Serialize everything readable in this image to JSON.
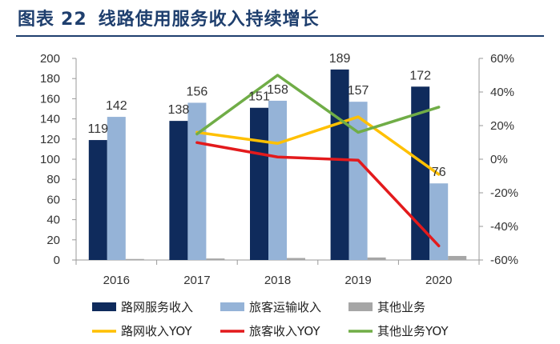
{
  "figure": {
    "label": "图表",
    "number": "22",
    "caption": "线路使用服务收入持续增长"
  },
  "chart_data": {
    "type": "bar",
    "title": "线路使用服务收入持续增长",
    "categories": [
      "2016",
      "2017",
      "2018",
      "2019",
      "2020"
    ],
    "y_left": {
      "min": 0,
      "max": 200,
      "step": 20
    },
    "y_right": {
      "min": -60,
      "max": 60,
      "step": 20,
      "unit": "%"
    },
    "bar_series": [
      {
        "name": "路网服务收入",
        "color": "#0f2b5c",
        "values": [
          119,
          138,
          151,
          189,
          172
        ],
        "labels": [
          "119",
          "138",
          "151",
          "189",
          "172"
        ]
      },
      {
        "name": "旅客运输收入",
        "color": "#95b3d7",
        "values": [
          142,
          156,
          158,
          157,
          76
        ],
        "labels": [
          "142",
          "156",
          "158",
          "157",
          "76"
        ]
      },
      {
        "name": "其他业务",
        "color": "#a6a6a6",
        "values": [
          1,
          1.5,
          2,
          2.5,
          4
        ]
      }
    ],
    "line_series": [
      {
        "name": "路网收入YOY",
        "color": "#ffc000",
        "values": [
          null,
          16,
          9.4,
          25.2,
          -9
        ]
      },
      {
        "name": "旅客收入YOY",
        "color": "#e31a1c",
        "values": [
          null,
          9.9,
          1.3,
          -0.6,
          -51.6
        ]
      },
      {
        "name": "其他业务YOY",
        "color": "#70ad47",
        "values": [
          null,
          15,
          50,
          16,
          31
        ]
      }
    ],
    "legend_position": "bottom"
  }
}
